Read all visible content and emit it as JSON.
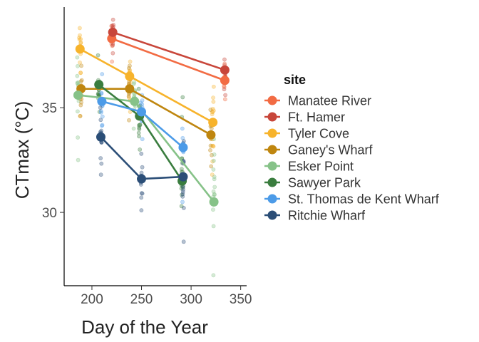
{
  "chart_data": {
    "type": "scatter",
    "xlabel": "Day of the Year",
    "ylabel": "CTmax (°C)",
    "xlim": [
      172,
      356
    ],
    "ylim": [
      26.5,
      39.8
    ],
    "xticks": [
      200,
      250,
      300,
      350
    ],
    "yticks": [
      30,
      35
    ],
    "legend": {
      "title": "site",
      "placement": "right"
    },
    "series": [
      {
        "name": "Manatee River",
        "color": "#F26B43",
        "x": [
          220,
          334
        ],
        "y": [
          38.3,
          36.3
        ],
        "raw": {
          "x": [
            220,
            334
          ],
          "ymin": [
            37.2,
            35.4
          ],
          "ymax": [
            38.9,
            37.1
          ],
          "n": 14
        }
      },
      {
        "name": "Ft. Hamer",
        "color": "#C8463A",
        "x": [
          221,
          334
        ],
        "y": [
          38.6,
          36.8
        ],
        "raw": {
          "x": [
            221,
            334
          ],
          "ymin": [
            37.6,
            35.6
          ],
          "ymax": [
            39.2,
            37.3
          ],
          "n": 14
        }
      },
      {
        "name": "Tyler Cove",
        "color": "#F7B32B",
        "x": [
          188,
          238,
          322
        ],
        "y": [
          37.8,
          36.5,
          34.3
        ],
        "raw": {
          "x": [
            188,
            238,
            322
          ],
          "ymin": [
            34.6,
            34.8,
            31.8
          ],
          "ymax": [
            38.8,
            37.2,
            36.0
          ],
          "n": 16
        }
      },
      {
        "name": "Ganey's Wharf",
        "color": "#BF860F",
        "x": [
          189,
          238,
          320
        ],
        "y": [
          35.9,
          35.9,
          33.7
        ],
        "raw": {
          "x": [
            189,
            238,
            320
          ],
          "ymin": [
            34.6,
            34.4,
            32.2
          ],
          "ymax": [
            37.0,
            37.0,
            34.9
          ],
          "n": 14
        }
      },
      {
        "name": "Esker Point",
        "color": "#86C288",
        "x": [
          186,
          243,
          323
        ],
        "y": [
          35.6,
          35.3,
          30.5
        ],
        "raw": {
          "x": [
            186,
            243,
            323
          ],
          "ymin": [
            32.5,
            34.0,
            27.0
          ],
          "ymax": [
            37.4,
            36.2,
            33.5
          ],
          "n": 16
        }
      },
      {
        "name": "Sawyer Park",
        "color": "#3A7D3F",
        "x": [
          207,
          248,
          291
        ],
        "y": [
          36.1,
          34.6,
          31.5
        ],
        "raw": {
          "x": [
            207,
            248,
            291
          ],
          "ymin": [
            34.8,
            33.0,
            30.3
          ],
          "ymax": [
            37.5,
            35.9,
            35.5
          ],
          "n": 14
        }
      },
      {
        "name": "St. Thomas de Kent Wharf",
        "color": "#4C9BE8",
        "x": [
          210,
          250,
          292
        ],
        "y": [
          35.3,
          34.8,
          33.1
        ],
        "raw": {
          "x": [
            210,
            250,
            292
          ],
          "ymin": [
            33.6,
            33.5,
            30.5
          ],
          "ymax": [
            36.6,
            35.6,
            34.0
          ],
          "n": 14
        }
      },
      {
        "name": "Ritchie Wharf",
        "color": "#2B4E77",
        "x": [
          209,
          250,
          292
        ],
        "y": [
          33.6,
          31.6,
          31.7
        ],
        "raw": {
          "x": [
            209,
            250,
            292
          ],
          "ymin": [
            31.8,
            30.1,
            28.6
          ],
          "ymax": [
            35.0,
            32.8,
            33.4
          ],
          "n": 14
        }
      }
    ]
  }
}
